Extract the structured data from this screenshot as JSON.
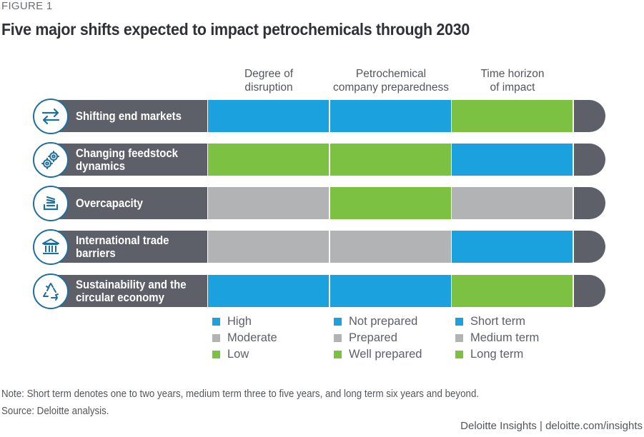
{
  "figure_label": "FIGURE 1",
  "colors": {
    "blue": "#1ba1dd",
    "gray": "#b1b3b4",
    "green": "#7dc142",
    "dark": "#5d6068",
    "icon_stroke": "#1f6ea0"
  },
  "chart_data": {
    "type": "table",
    "title": "Five major shifts expected to impact petrochemicals through 2030",
    "columns": [
      "Degree of\ndisruption",
      "Petrochemical\ncompany preparedness",
      "Time horizon\nof impact"
    ],
    "rows": [
      {
        "label": "Shifting end markets",
        "icon": "arrows-exchange-icon",
        "values": [
          "High",
          "Not prepared",
          "Long term"
        ],
        "colors": [
          "blue",
          "blue",
          "green"
        ]
      },
      {
        "label": "Changing feedstock\ndynamics",
        "icon": "gears-icon",
        "values": [
          "Low",
          "Well prepared",
          "Short term"
        ],
        "colors": [
          "green",
          "green",
          "blue"
        ]
      },
      {
        "label": "Overcapacity",
        "icon": "stacked-tray-icon",
        "values": [
          "Moderate",
          "Well prepared",
          "Medium term"
        ],
        "colors": [
          "gray",
          "green",
          "gray"
        ]
      },
      {
        "label": "International trade\nbarriers",
        "icon": "government-building-icon",
        "values": [
          "Moderate",
          "Prepared",
          "Short term"
        ],
        "colors": [
          "gray",
          "gray",
          "blue"
        ]
      },
      {
        "label": "Sustainability and the\ncircular economy",
        "icon": "recycle-icon",
        "values": [
          "High",
          "Not prepared",
          "Long term"
        ],
        "colors": [
          "blue",
          "blue",
          "green"
        ]
      }
    ],
    "legend": [
      [
        {
          "label": "High",
          "color": "blue"
        },
        {
          "label": "Moderate",
          "color": "gray"
        },
        {
          "label": "Low",
          "color": "green"
        }
      ],
      [
        {
          "label": "Not prepared",
          "color": "blue"
        },
        {
          "label": "Prepared",
          "color": "gray"
        },
        {
          "label": "Well prepared",
          "color": "green"
        }
      ],
      [
        {
          "label": "Short term",
          "color": "blue"
        },
        {
          "label": "Medium term",
          "color": "gray"
        },
        {
          "label": "Long term",
          "color": "green"
        }
      ]
    ]
  },
  "note": "Note: Short term denotes one to two years, medium term three to five years, and long term six years and beyond.",
  "source": "Source: Deloitte analysis.",
  "footer": "Deloitte Insights | deloitte.com/insights"
}
